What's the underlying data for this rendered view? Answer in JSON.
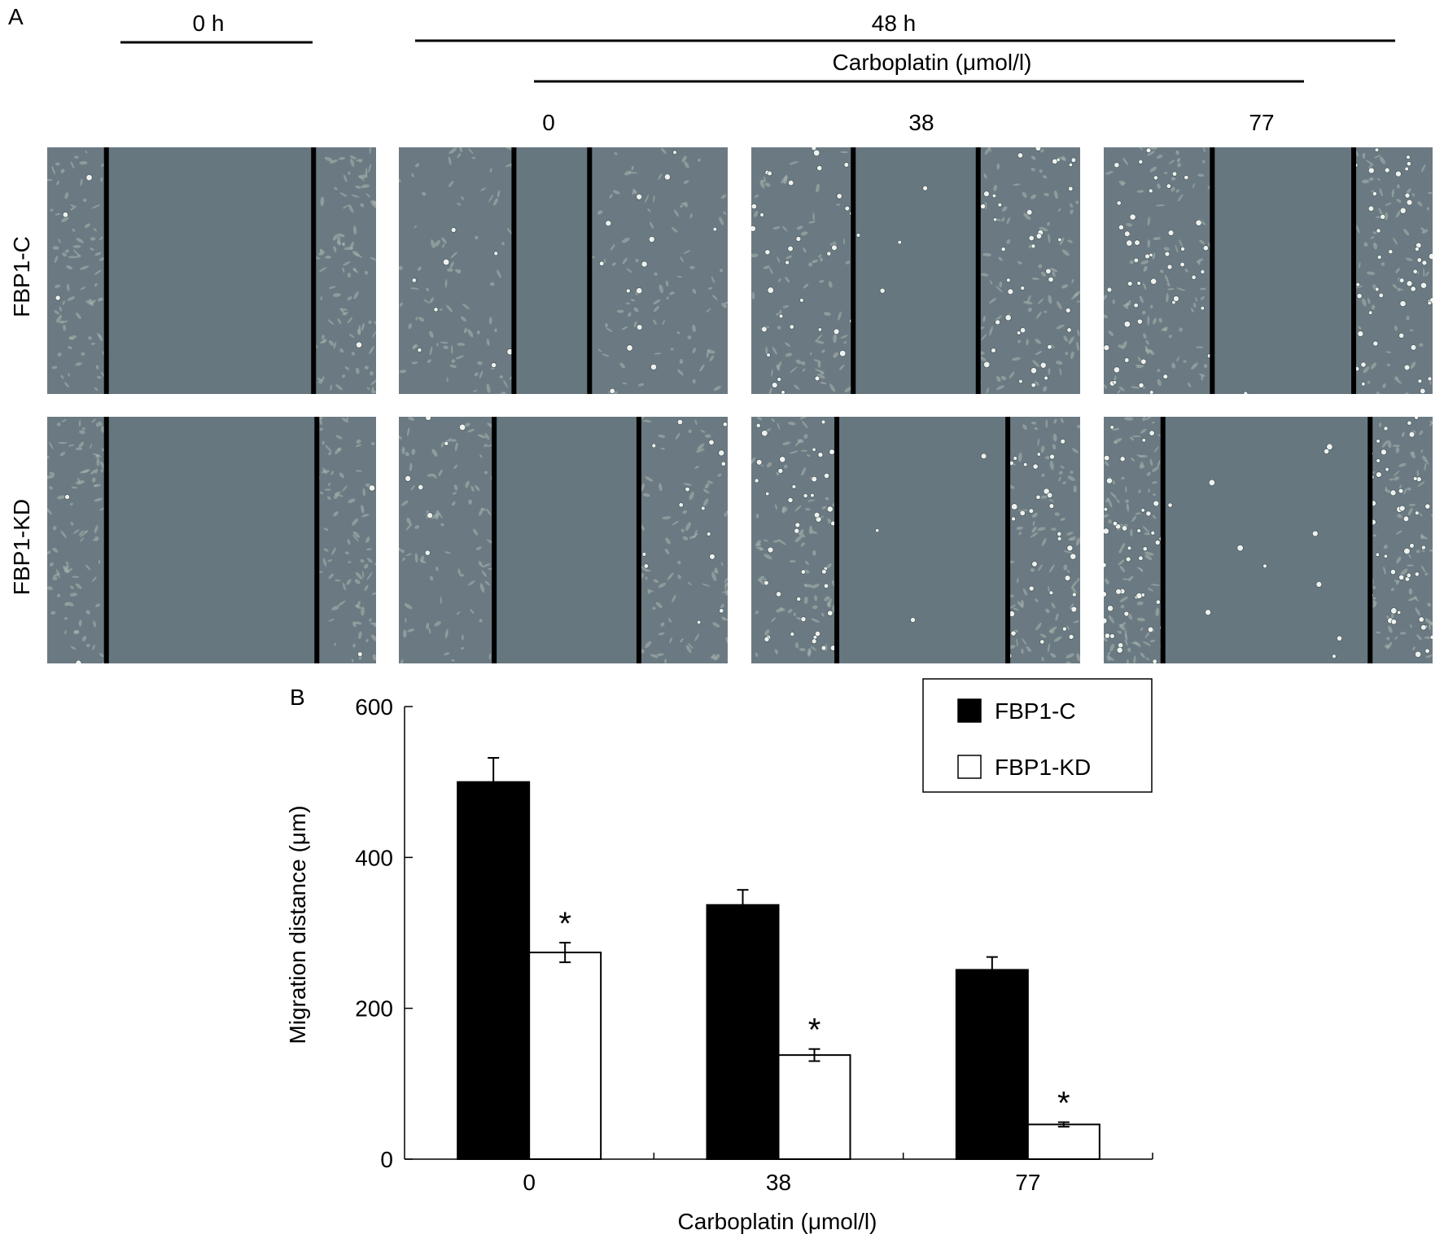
{
  "panel_a": {
    "letter": "A",
    "time_labels": [
      "0 h",
      "48 h"
    ],
    "carboplatin_header": "Carboplatin (μmol/l)",
    "concentration_labels": [
      "0",
      "38",
      "77"
    ],
    "row_labels": [
      "FBP1-C",
      "FBP1-KD"
    ],
    "micrograph_colors": {
      "background": "#6b7a82",
      "gap": "#67777f",
      "cell": "#a9b6b0",
      "rounded_cell": "#eef2ee",
      "wound_line": "#000000"
    },
    "micrographs": [
      {
        "row": "FBP1-C",
        "column": "0 h",
        "round_cell_level": 0,
        "wound_edges": [
          0.18,
          0.81
        ]
      },
      {
        "row": "FBP1-C",
        "column": "48 h, 0",
        "round_cell_level": 0.2,
        "wound_edges": [
          0.35,
          0.58
        ]
      },
      {
        "row": "FBP1-C",
        "column": "48 h, 38",
        "round_cell_level": 0.8,
        "wound_edges": [
          0.31,
          0.69
        ]
      },
      {
        "row": "FBP1-C",
        "column": "48 h, 77",
        "round_cell_level": 1.0,
        "wound_edges": [
          0.33,
          0.76
        ]
      },
      {
        "row": "FBP1-KD",
        "column": "0 h",
        "round_cell_level": 0,
        "wound_edges": [
          0.18,
          0.82
        ]
      },
      {
        "row": "FBP1-KD",
        "column": "48 h, 0",
        "round_cell_level": 0.2,
        "wound_edges": [
          0.29,
          0.73
        ]
      },
      {
        "row": "FBP1-KD",
        "column": "48 h, 38",
        "round_cell_level": 0.8,
        "wound_edges": [
          0.26,
          0.78
        ]
      },
      {
        "row": "FBP1-KD",
        "column": "48 h, 77",
        "round_cell_level": 1.0,
        "wound_edges": [
          0.18,
          0.81
        ]
      }
    ]
  },
  "panel_b": {
    "letter": "B"
  },
  "chart_data": {
    "type": "bar",
    "title": "",
    "xlabel": "Carboplatin (μmol/l)",
    "ylabel": "Migration distance (μm)",
    "categories": [
      "0",
      "38",
      "77"
    ],
    "ylim": [
      0,
      600
    ],
    "yticks": [
      0,
      200,
      400,
      600
    ],
    "grid": false,
    "legend_position": "top-right",
    "series": [
      {
        "name": "FBP1-C",
        "values": [
          500,
          337,
          251
        ],
        "errors": [
          32,
          20,
          17
        ],
        "color": "#000000"
      },
      {
        "name": "FBP1-KD",
        "values": [
          274,
          138,
          46
        ],
        "errors": [
          13,
          8,
          3
        ],
        "color": "#ffffff"
      }
    ],
    "annotations": [
      {
        "series": "FBP1-KD",
        "category": "0",
        "text": "*"
      },
      {
        "series": "FBP1-KD",
        "category": "38",
        "text": "*"
      },
      {
        "series": "FBP1-KD",
        "category": "77",
        "text": "*"
      }
    ]
  }
}
